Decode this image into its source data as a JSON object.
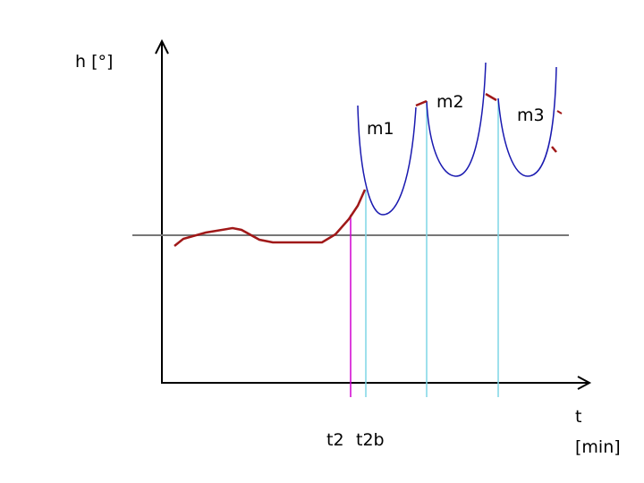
{
  "y_axis_label": "h [°]",
  "x_axis_label": {
    "symbol": "t",
    "unit": "[min]"
  },
  "time_markers": [
    "t2",
    "t2b"
  ],
  "curve_labels": [
    "m1",
    "m2",
    "m3"
  ]
}
